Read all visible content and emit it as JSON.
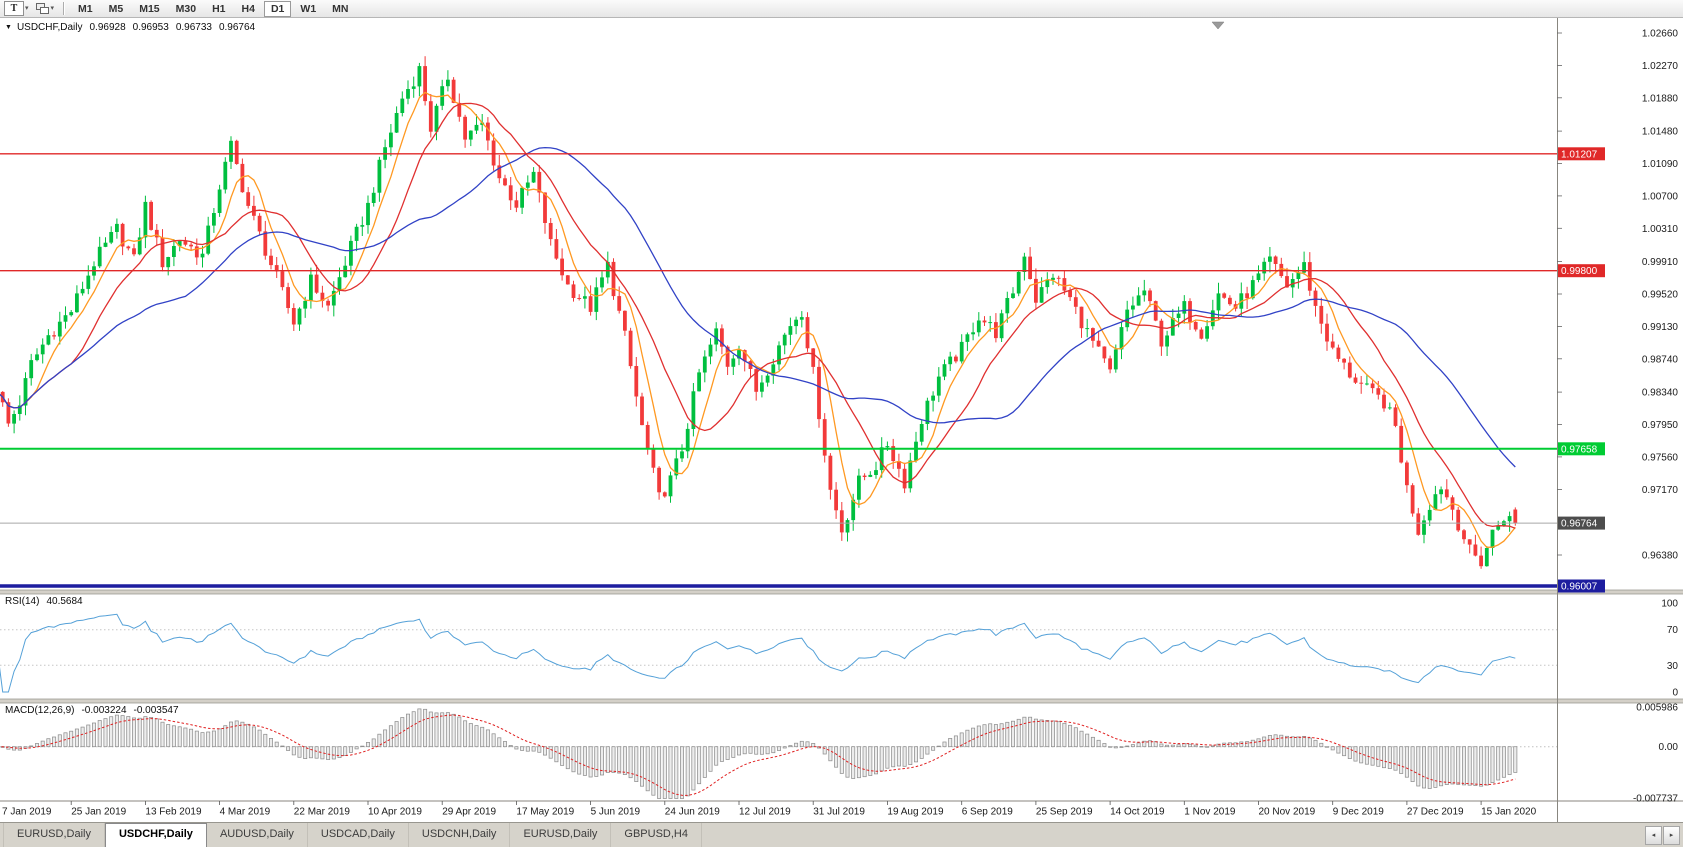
{
  "toolbar": {
    "chart_type_label": "T",
    "timeframes": [
      "M1",
      "M5",
      "M15",
      "M30",
      "H1",
      "H4",
      "D1",
      "W1",
      "MN"
    ],
    "active_timeframe": "D1"
  },
  "chart": {
    "collapse_icon": "▼",
    "symbol": "USDCHF,Daily",
    "ohlc": {
      "open": "0.96928",
      "high": "0.96953",
      "low": "0.96733",
      "close": "0.96764"
    }
  },
  "price_axis": {
    "labels": [
      "1.02660",
      "1.02270",
      "1.01880",
      "1.01480",
      "1.01090",
      "1.00700",
      "1.00310",
      "0.99910",
      "0.99520",
      "0.99130",
      "0.98740",
      "0.98340",
      "0.97950",
      "0.97560",
      "0.97170",
      "0.96380"
    ]
  },
  "levels": [
    {
      "label": "1.01207",
      "price": 1.01207,
      "color": "#e02828",
      "thickness": 1.4
    },
    {
      "label": "0.99800",
      "price": 0.998,
      "color": "#e02828",
      "thickness": 1.4
    },
    {
      "label": "0.97658",
      "price": 0.97658,
      "color": "#00cc33",
      "thickness": 2
    },
    {
      "label": "0.96007",
      "price": 0.96007,
      "color": "#1d1d9f",
      "thickness": 3.5
    }
  ],
  "current_price": {
    "label": "0.96764",
    "price": 0.96764,
    "line_color": "#a6a6a6",
    "box_color": "#4d4d4d"
  },
  "rsi": {
    "title": "RSI(14)",
    "value": "40.5684",
    "axis_labels": [
      "100",
      "70",
      "30",
      "0"
    ],
    "line_color": "#55a1d8",
    "level_high": 70,
    "level_low": 30
  },
  "macd": {
    "title": "MACD(12,26,9)",
    "value_main": "-0.003224",
    "value_signal": "-0.003547",
    "axis_labels": [
      "0.005986",
      "0.00",
      "-0.007737"
    ],
    "signal_color": "#e02020",
    "hist_fill": "#ececec",
    "hist_stroke": "#8f8f8f"
  },
  "date_axis": {
    "labels": [
      "7 Jan 2019",
      "25 Jan 2019",
      "13 Feb 2019",
      "4 Mar 2019",
      "22 Mar 2019",
      "10 Apr 2019",
      "29 Apr 2019",
      "17 May 2019",
      "5 Jun 2019",
      "24 Jun 2019",
      "12 Jul 2019",
      "31 Jul 2019",
      "19 Aug 2019",
      "6 Sep 2019",
      "25 Sep 2019",
      "14 Oct 2019",
      "1 Nov 2019",
      "20 Nov 2019",
      "9 Dec 2019",
      "27 Dec 2019",
      "15 Jan 2020"
    ]
  },
  "tabs": {
    "items": [
      {
        "label": "EURUSD,Daily",
        "active": false
      },
      {
        "label": "USDCHF,Daily",
        "active": true
      },
      {
        "label": "AUDUSD,Daily",
        "active": false
      },
      {
        "label": "USDCAD,Daily",
        "active": false
      },
      {
        "label": "USDCNH,Daily",
        "active": false
      },
      {
        "label": "EURUSD,Daily",
        "active": false
      },
      {
        "label": "GBPUSD,H4",
        "active": false
      }
    ]
  },
  "chart_data": {
    "type": "candlestick",
    "symbol": "USDCHF",
    "timeframe": "Daily",
    "candles": 267,
    "candles_per_label": 13,
    "ylim": [
      0.95959,
      1.02841
    ],
    "up_color": "#00bf3f",
    "down_color": "#f23a3a",
    "ma": [
      {
        "period": 6,
        "color": "#ff9922"
      },
      {
        "period": 14,
        "color": "#e03030"
      },
      {
        "period": 34,
        "color": "#3142c6"
      }
    ],
    "price_path": [
      [
        0,
        0.984
      ],
      [
        2,
        0.9795
      ],
      [
        4,
        0.9822
      ],
      [
        6,
        0.9868
      ],
      [
        9,
        0.9902
      ],
      [
        13,
        0.9932
      ],
      [
        17,
        0.999
      ],
      [
        21,
        1.003
      ],
      [
        24,
        0.9992
      ],
      [
        26,
        1.0058
      ],
      [
        29,
        0.999
      ],
      [
        32,
        1.0018
      ],
      [
        36,
        0.9998
      ],
      [
        39,
        1.0082
      ],
      [
        41,
        1.013
      ],
      [
        44,
        1.0058
      ],
      [
        48,
        0.9988
      ],
      [
        52,
        0.9918
      ],
      [
        55,
        0.9968
      ],
      [
        58,
        0.9936
      ],
      [
        62,
        1.0008
      ],
      [
        65,
        1.0058
      ],
      [
        68,
        1.0128
      ],
      [
        71,
        1.0188
      ],
      [
        74,
        1.0222
      ],
      [
        76,
        1.0152
      ],
      [
        79,
        1.0214
      ],
      [
        82,
        1.014
      ],
      [
        85,
        1.0156
      ],
      [
        88,
        1.0092
      ],
      [
        91,
        1.006
      ],
      [
        94,
        1.0096
      ],
      [
        97,
        1.0012
      ],
      [
        100,
        0.9962
      ],
      [
        104,
        0.9936
      ],
      [
        107,
        0.9986
      ],
      [
        110,
        0.99
      ],
      [
        113,
        0.9792
      ],
      [
        116,
        0.9706
      ],
      [
        118,
        0.9728
      ],
      [
        120,
        0.9766
      ],
      [
        123,
        0.9856
      ],
      [
        126,
        0.9906
      ],
      [
        128,
        0.9868
      ],
      [
        130,
        0.9892
      ],
      [
        133,
        0.9836
      ],
      [
        136,
        0.9876
      ],
      [
        139,
        0.9916
      ],
      [
        141,
        0.9932
      ],
      [
        143,
        0.9856
      ],
      [
        146,
        0.9716
      ],
      [
        148,
        0.9668
      ],
      [
        151,
        0.9726
      ],
      [
        154,
        0.9746
      ],
      [
        156,
        0.9772
      ],
      [
        159,
        0.9726
      ],
      [
        162,
        0.9802
      ],
      [
        165,
        0.9852
      ],
      [
        169,
        0.9886
      ],
      [
        172,
        0.9926
      ],
      [
        175,
        0.9906
      ],
      [
        178,
        0.9956
      ],
      [
        180,
        1.0002
      ],
      [
        182,
        0.9946
      ],
      [
        185,
        0.9976
      ],
      [
        188,
        0.9946
      ],
      [
        191,
        0.9906
      ],
      [
        195,
        0.9856
      ],
      [
        198,
        0.9932
      ],
      [
        201,
        0.9956
      ],
      [
        204,
        0.9896
      ],
      [
        208,
        0.9936
      ],
      [
        211,
        0.9906
      ],
      [
        214,
        0.9952
      ],
      [
        217,
        0.9936
      ],
      [
        221,
        0.9972
      ],
      [
        223,
        0.9992
      ],
      [
        226,
        0.9962
      ],
      [
        229,
        0.9986
      ],
      [
        231,
        0.9936
      ],
      [
        234,
        0.9882
      ],
      [
        237,
        0.9856
      ],
      [
        240,
        0.9836
      ],
      [
        243,
        0.9822
      ],
      [
        245,
        0.9792
      ],
      [
        247,
        0.9718
      ],
      [
        249,
        0.9668
      ],
      [
        251,
        0.97
      ],
      [
        253,
        0.9722
      ],
      [
        255,
        0.9694
      ],
      [
        258,
        0.9642
      ],
      [
        260,
        0.963
      ],
      [
        262,
        0.9665
      ],
      [
        264,
        0.9685
      ],
      [
        266,
        0.9676
      ]
    ]
  }
}
